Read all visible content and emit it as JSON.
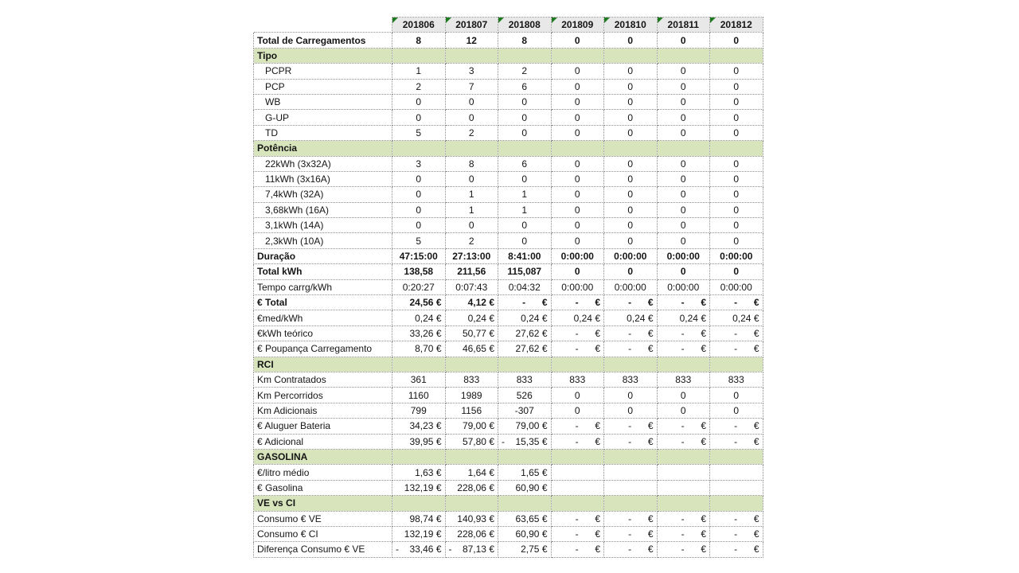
{
  "app": {
    "kind": "spreadsheet-report",
    "language": "pt",
    "title": "EV charging monthly report"
  },
  "colors": {
    "section_bg": "#d7e4bc",
    "header_bg": "#e8e8e8",
    "grid_border": "#8f8f8f",
    "flag_green": "#1e7a1e",
    "text": "#151515"
  },
  "table": {
    "corner_label": "",
    "columns": [
      "201806",
      "201807",
      "201808",
      "201809",
      "201810",
      "201811",
      "201812"
    ],
    "rows": [
      {
        "kind": "data",
        "label": "Total de Carregamentos",
        "bold": true,
        "indent": false,
        "format": "center",
        "values": [
          "8",
          "12",
          "8",
          "0",
          "0",
          "0",
          "0"
        ]
      },
      {
        "kind": "section",
        "label": "Tipo",
        "values": [
          "",
          "",
          "",
          "",
          "",
          "",
          ""
        ]
      },
      {
        "kind": "data",
        "label": "PCPR",
        "bold": false,
        "indent": true,
        "format": "center",
        "values": [
          "1",
          "3",
          "2",
          "0",
          "0",
          "0",
          "0"
        ]
      },
      {
        "kind": "data",
        "label": "PCP",
        "bold": false,
        "indent": true,
        "format": "center",
        "values": [
          "2",
          "7",
          "6",
          "0",
          "0",
          "0",
          "0"
        ]
      },
      {
        "kind": "data",
        "label": "WB",
        "bold": false,
        "indent": true,
        "format": "center",
        "values": [
          "0",
          "0",
          "0",
          "0",
          "0",
          "0",
          "0"
        ]
      },
      {
        "kind": "data",
        "label": "G-UP",
        "bold": false,
        "indent": true,
        "format": "center",
        "values": [
          "0",
          "0",
          "0",
          "0",
          "0",
          "0",
          "0"
        ]
      },
      {
        "kind": "data",
        "label": "TD",
        "bold": false,
        "indent": true,
        "format": "center",
        "values": [
          "5",
          "2",
          "0",
          "0",
          "0",
          "0",
          "0"
        ]
      },
      {
        "kind": "section",
        "label": "Potência",
        "values": [
          "",
          "",
          "",
          "",
          "",
          "",
          ""
        ]
      },
      {
        "kind": "data",
        "label": "22kWh (3x32A)",
        "bold": false,
        "indent": true,
        "format": "center",
        "values": [
          "3",
          "8",
          "6",
          "0",
          "0",
          "0",
          "0"
        ]
      },
      {
        "kind": "data",
        "label": "11kWh (3x16A)",
        "bold": false,
        "indent": true,
        "format": "center",
        "values": [
          "0",
          "0",
          "0",
          "0",
          "0",
          "0",
          "0"
        ]
      },
      {
        "kind": "data",
        "label": "7,4kWh (32A)",
        "bold": false,
        "indent": true,
        "format": "center",
        "values": [
          "0",
          "1",
          "1",
          "0",
          "0",
          "0",
          "0"
        ]
      },
      {
        "kind": "data",
        "label": "3,68kWh (16A)",
        "bold": false,
        "indent": true,
        "format": "center",
        "values": [
          "0",
          "1",
          "1",
          "0",
          "0",
          "0",
          "0"
        ]
      },
      {
        "kind": "data",
        "label": "3,1kWh (14A)",
        "bold": false,
        "indent": true,
        "format": "center",
        "values": [
          "0",
          "0",
          "0",
          "0",
          "0",
          "0",
          "0"
        ]
      },
      {
        "kind": "data",
        "label": "2,3kWh (10A)",
        "bold": false,
        "indent": true,
        "format": "center",
        "values": [
          "5",
          "2",
          "0",
          "0",
          "0",
          "0",
          "0"
        ]
      },
      {
        "kind": "data",
        "label": "Duração",
        "bold": true,
        "indent": false,
        "format": "center",
        "values": [
          "47:15:00",
          "27:13:00",
          "8:41:00",
          "0:00:00",
          "0:00:00",
          "0:00:00",
          "0:00:00"
        ]
      },
      {
        "kind": "data",
        "label": "Total kWh",
        "bold": true,
        "indent": false,
        "format": "center",
        "values": [
          "138,58",
          "211,56",
          "115,087",
          "0",
          "0",
          "0",
          "0"
        ]
      },
      {
        "kind": "data",
        "label": "Tempo carrg/kWh",
        "bold": false,
        "indent": false,
        "format": "center",
        "values": [
          "0:20:27",
          "0:07:43",
          "0:04:32",
          "0:00:00",
          "0:00:00",
          "0:00:00",
          "0:00:00"
        ]
      },
      {
        "kind": "data",
        "label": "€ Total",
        "bold": true,
        "indent": false,
        "format": "euro",
        "values": [
          "24,56 €",
          "4,12 €",
          "- €",
          "- €",
          "- €",
          "- €",
          "- €"
        ]
      },
      {
        "kind": "data",
        "label": "€med/kWh",
        "bold": false,
        "indent": false,
        "format": "euro",
        "values": [
          "0,24 €",
          "0,24 €",
          "0,24 €",
          "0,24 €",
          "0,24 €",
          "0,24 €",
          "0,24 €"
        ]
      },
      {
        "kind": "data",
        "label": "€kWh teórico",
        "bold": false,
        "indent": false,
        "format": "euro",
        "values": [
          "33,26 €",
          "50,77 €",
          "27,62 €",
          "- €",
          "- €",
          "- €",
          "- €"
        ]
      },
      {
        "kind": "data",
        "label": "€ Poupança Carregamento",
        "bold": false,
        "indent": false,
        "format": "euro",
        "values": [
          "8,70 €",
          "46,65 €",
          "27,62 €",
          "- €",
          "- €",
          "- €",
          "- €"
        ]
      },
      {
        "kind": "section",
        "label": "RCI",
        "values": [
          "",
          "",
          "",
          "",
          "",
          "",
          ""
        ]
      },
      {
        "kind": "data",
        "label": "Km Contratados",
        "bold": false,
        "indent": false,
        "format": "center",
        "values": [
          "361",
          "833",
          "833",
          "833",
          "833",
          "833",
          "833"
        ]
      },
      {
        "kind": "data",
        "label": "Km Percorridos",
        "bold": false,
        "indent": false,
        "format": "center",
        "values": [
          "1160",
          "1989",
          "526",
          "0",
          "0",
          "0",
          "0"
        ]
      },
      {
        "kind": "data",
        "label": "Km Adicionais",
        "bold": false,
        "indent": false,
        "format": "center",
        "values": [
          "799",
          "1156",
          "-307",
          "0",
          "0",
          "0",
          "0"
        ]
      },
      {
        "kind": "data",
        "label": "€ Aluguer Bateria",
        "bold": false,
        "indent": false,
        "format": "euro",
        "values": [
          "34,23 €",
          "79,00 €",
          "79,00 €",
          "- €",
          "- €",
          "- €",
          "- €"
        ]
      },
      {
        "kind": "data",
        "label": "€ Adicional",
        "bold": false,
        "indent": false,
        "format": "euro",
        "values": [
          "39,95 €",
          "57,80 €",
          "- 15,35 €",
          "- €",
          "- €",
          "- €",
          "- €"
        ]
      },
      {
        "kind": "section",
        "label": "GASOLINA",
        "values": [
          "",
          "",
          "",
          "",
          "",
          "",
          ""
        ]
      },
      {
        "kind": "data",
        "label": "€/litro médio",
        "bold": false,
        "indent": false,
        "format": "euro",
        "values": [
          "1,63 €",
          "1,64 €",
          "1,65 €",
          "",
          "",
          "",
          ""
        ]
      },
      {
        "kind": "data",
        "label": "€ Gasolina",
        "bold": false,
        "indent": false,
        "format": "euro",
        "values": [
          "132,19 €",
          "228,06 €",
          "60,90 €",
          "",
          "",
          "",
          ""
        ]
      },
      {
        "kind": "section",
        "label": "VE vs CI",
        "values": [
          "",
          "",
          "",
          "",
          "",
          "",
          ""
        ]
      },
      {
        "kind": "data",
        "label": "Consumo € VE",
        "bold": false,
        "indent": false,
        "format": "euro",
        "values": [
          "98,74 €",
          "140,93 €",
          "63,65 €",
          "- €",
          "- €",
          "- €",
          "- €"
        ]
      },
      {
        "kind": "data",
        "label": "Consumo € CI",
        "bold": false,
        "indent": false,
        "format": "euro",
        "values": [
          "132,19 €",
          "228,06 €",
          "60,90 €",
          "- €",
          "- €",
          "- €",
          "- €"
        ]
      },
      {
        "kind": "data",
        "label": "Diferença Consumo € VE",
        "bold": false,
        "indent": false,
        "format": "euro",
        "values": [
          "- 33,46 €",
          "- 87,13 €",
          "2,75 €",
          "- €",
          "- €",
          "- €",
          "- €"
        ]
      }
    ]
  }
}
